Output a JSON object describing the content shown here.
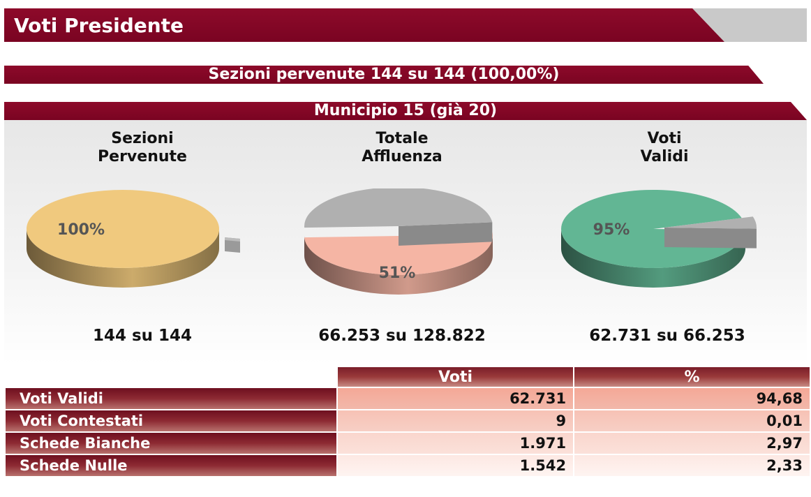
{
  "header": {
    "title": "Voti Presidente"
  },
  "summary": {
    "sezioni_text": "Sezioni pervenute 144 su 144 (100,00%)"
  },
  "municipio": {
    "title": "Municipio 15 (già 20)"
  },
  "pies": [
    {
      "title_line1": "Sezioni",
      "title_line2": "Pervenute",
      "percent_label": "100%",
      "value": 100,
      "caption": "144 su 144",
      "color": "#f0c97e",
      "rest_color": "#b0b0b0"
    },
    {
      "title_line1": "Totale",
      "title_line2": "Affluenza",
      "percent_label": "51%",
      "value": 51,
      "caption": "66.253 su 128.822",
      "color": "#f5b5a4",
      "rest_color": "#b0b0b0"
    },
    {
      "title_line1": "Voti",
      "title_line2": "Validi",
      "percent_label": "95%",
      "value": 95,
      "caption": "62.731 su 66.253",
      "color": "#62b694",
      "rest_color": "#b0b0b0"
    }
  ],
  "table": {
    "headers": [
      "Voti",
      "%"
    ],
    "rows": [
      {
        "label": "Voti Validi",
        "voti": "62.731",
        "pct": "94,68"
      },
      {
        "label": "Voti Contestati",
        "voti": "9",
        "pct": "0,01"
      },
      {
        "label": "Schede Bianche",
        "voti": "1.971",
        "pct": "2,97"
      },
      {
        "label": "Schede Nulle",
        "voti": "1.542",
        "pct": "2,33"
      }
    ]
  }
}
